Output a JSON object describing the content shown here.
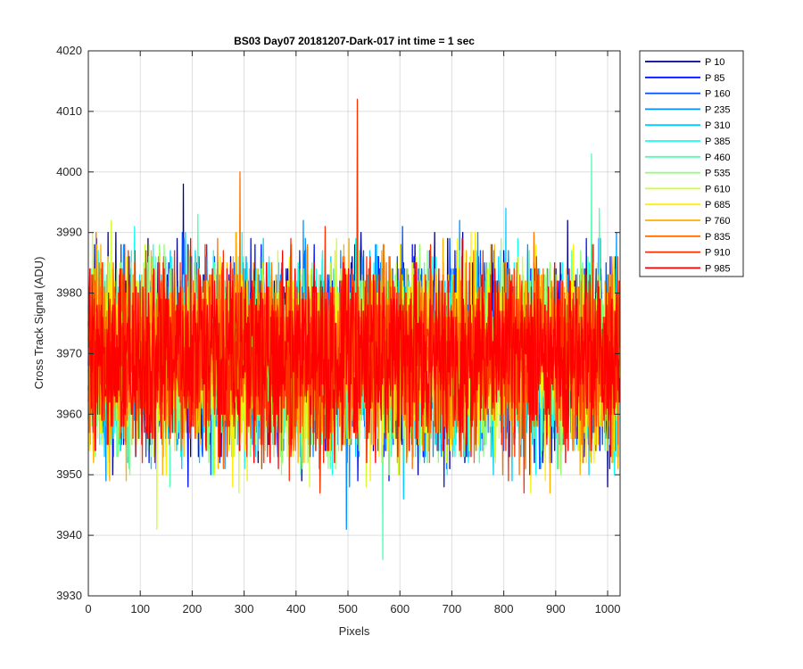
{
  "chart_data": {
    "type": "line",
    "title": "BS03 Day07 20181207-Dark-017 int time = 1 sec",
    "xlabel": "Pixels",
    "ylabel": "Cross Track Signal (ADU)",
    "xlim": [
      0,
      1024
    ],
    "ylim": [
      3930,
      4020
    ],
    "xticks": [
      0,
      100,
      200,
      300,
      400,
      500,
      600,
      700,
      800,
      900,
      1000
    ],
    "yticks": [
      3930,
      3940,
      3950,
      3960,
      3970,
      3980,
      3990,
      4000,
      4010,
      4020
    ],
    "grid": true,
    "legend_position": "outside-right-top",
    "noise_model": {
      "n_points": 1024,
      "mean": 3969.5,
      "sd": 7.5,
      "resolution": 1
    },
    "series": [
      {
        "name": "P 10",
        "color": "#00008f",
        "extremes": [
          {
            "x": 183,
            "y": 3998
          }
        ]
      },
      {
        "name": "P 85",
        "color": "#0010ff",
        "extremes": []
      },
      {
        "name": "P 160",
        "color": "#0050ff",
        "extremes": []
      },
      {
        "name": "P 235",
        "color": "#0090ff",
        "extremes": [
          {
            "x": 497,
            "y": 3941
          }
        ]
      },
      {
        "name": "P 310",
        "color": "#00cfff",
        "extremes": []
      },
      {
        "name": "P 385",
        "color": "#10ffef",
        "extremes": []
      },
      {
        "name": "P 460",
        "color": "#50ffaf",
        "extremes": [
          {
            "x": 567,
            "y": 3936
          },
          {
            "x": 969,
            "y": 4003
          }
        ]
      },
      {
        "name": "P 535",
        "color": "#8fff70",
        "extremes": []
      },
      {
        "name": "P 610",
        "color": "#cfff30",
        "extremes": [
          {
            "x": 132,
            "y": 3941
          }
        ]
      },
      {
        "name": "P 685",
        "color": "#ffef00",
        "extremes": []
      },
      {
        "name": "P 760",
        "color": "#ffaf00",
        "extremes": []
      },
      {
        "name": "P 835",
        "color": "#ff7000",
        "extremes": [
          {
            "x": 292,
            "y": 4000
          }
        ]
      },
      {
        "name": "P 910",
        "color": "#ff3000",
        "extremes": [
          {
            "x": 518,
            "y": 4012
          }
        ]
      },
      {
        "name": "P 985",
        "color": "#ff0000",
        "extremes": []
      }
    ]
  }
}
